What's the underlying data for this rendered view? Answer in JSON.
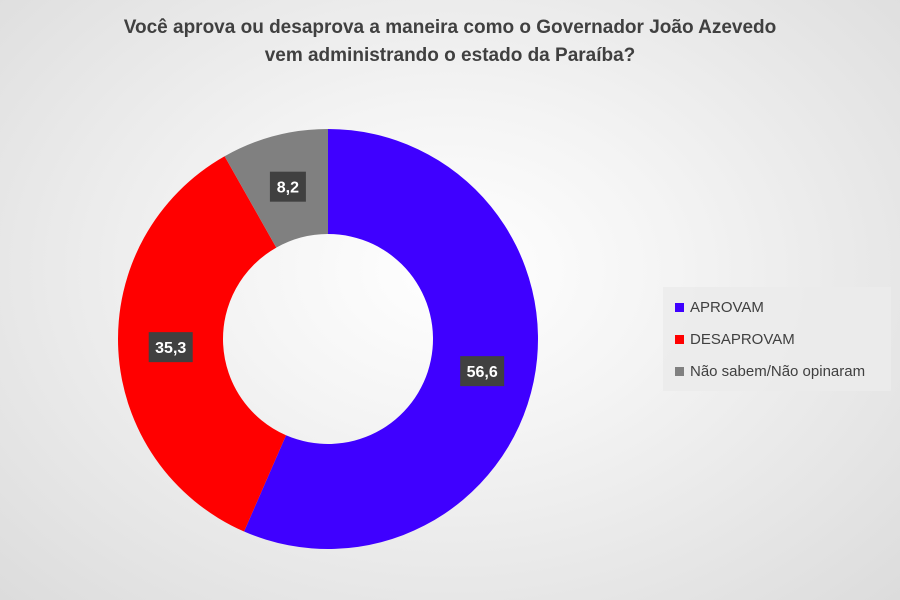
{
  "chart_data": {
    "type": "pie",
    "variant": "donut",
    "title_lines": [
      "Você aprova ou desaprova a maneira como o Governador João Azevedo",
      "vem administrando o estado da Paraíba?"
    ],
    "series": [
      {
        "name": "APROVAM",
        "value": 56.6,
        "label": "56,6",
        "color": "#3F00FF"
      },
      {
        "name": "DESAPROVAM",
        "value": 35.3,
        "label": "35,3",
        "color": "#FF0000"
      },
      {
        "name": "Não sabem/Não opinaram",
        "value": 8.2,
        "label": "8,2",
        "color": "#808080"
      }
    ],
    "legend_position": "right",
    "data_label_style": {
      "background": "#404040",
      "text_color": "#ffffff"
    }
  }
}
